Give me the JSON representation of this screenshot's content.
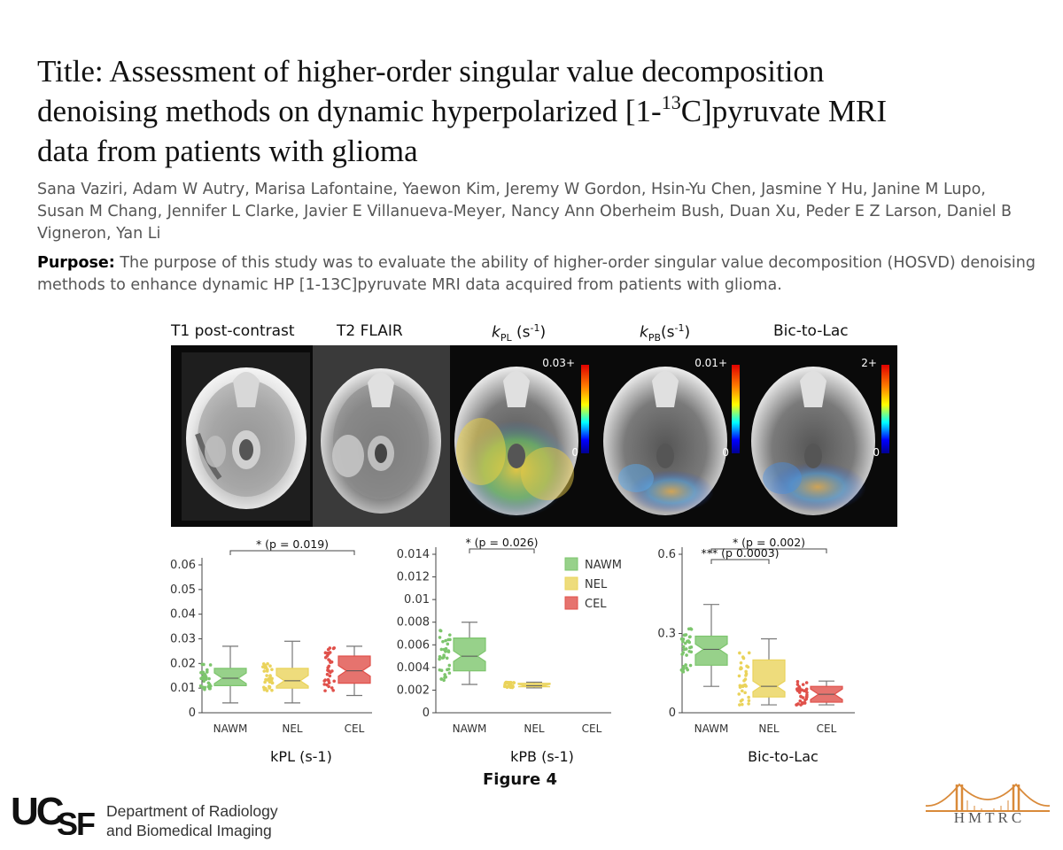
{
  "title": {
    "line1": "Title: Assessment of higher-order singular value decomposition",
    "line2_pre": "denoising methods on dynamic hyperpolarized [1-",
    "line2_sup": "13",
    "line2_post": "C]pyruvate MRI",
    "line3": "data from patients with glioma"
  },
  "authors": "Sana Vaziri, Adam W Autry, Marisa Lafontaine, Yaewon Kim, Jeremy W Gordon, Hsin-Yu Chen, Jasmine Y Hu, Janine M Lupo, Susan M Chang, Jennifer L Clarke, Javier E Villanueva-Meyer, Nancy Ann Oberheim Bush, Duan Xu, Peder E Z Larson, Daniel B Vigneron, Yan Li",
  "purpose": {
    "label": "Purpose:",
    "text": " The purpose of this study was to evaluate the ability of higher-order singular value decomposition (HOSVD) denoising methods to enhance dynamic HP [1-13C]pyruvate MRI data acquired from patients with glioma."
  },
  "figure": {
    "panel_labels": {
      "t1": "T1 post-contrast",
      "t2": "T2 FLAIR",
      "kpl_k": "k",
      "kpl_sub": "PL",
      "kpl_unit": " (s",
      "kpl_sup": "-1",
      "kpl_close": ")",
      "kpb_k": "k",
      "kpb_sub": "PB",
      "kpb_unit": "(s",
      "kpb_sup": "-1",
      "kpb_close": ")",
      "bic": "Bic-to-Lac"
    },
    "colorbars": {
      "kpl_max": "0.03+",
      "kpb_max": "0.01+",
      "bic_max": "2+",
      "min": "0"
    },
    "caption": "Figure 4"
  },
  "legend": [
    "NAWM",
    "NEL",
    "CEL"
  ],
  "colors": {
    "NAWM": "#7dc56d",
    "NEL": "#ead35b",
    "CEL": "#e0504a"
  },
  "chart_data": [
    {
      "type": "box",
      "xlabel": "kPL (s-1)",
      "categories": [
        "NAWM",
        "NEL",
        "CEL"
      ],
      "yticks": [
        "0.06",
        "0.05",
        "0.04",
        "0.03",
        "0.02",
        "0.01",
        "0"
      ],
      "ylim": [
        0,
        0.065
      ],
      "boxes": [
        {
          "name": "NAWM",
          "min": 0.004,
          "q1": 0.011,
          "median": 0.014,
          "q3": 0.018,
          "max": 0.027
        },
        {
          "name": "NEL",
          "min": 0.004,
          "q1": 0.01,
          "median": 0.013,
          "q3": 0.018,
          "max": 0.029
        },
        {
          "name": "CEL",
          "min": 0.007,
          "q1": 0.012,
          "median": 0.017,
          "q3": 0.023,
          "max": 0.027
        }
      ],
      "significance": [
        {
          "label": "* (p = 0.019)",
          "from": "NAWM",
          "to": "CEL"
        }
      ]
    },
    {
      "type": "box",
      "xlabel": "kPB (s-1)",
      "categories": [
        "NAWM",
        "NEL",
        "CEL"
      ],
      "yticks": [
        "0.014",
        "0.012",
        "0.01",
        "0.008",
        "0.006",
        "0.004",
        "0.002",
        "0"
      ],
      "ylim": [
        0,
        0.014
      ],
      "boxes": [
        {
          "name": "NAWM",
          "min": 0.0025,
          "q1": 0.0037,
          "median": 0.005,
          "q3": 0.0066,
          "max": 0.008
        },
        {
          "name": "NEL",
          "min": 0.0022,
          "q1": 0.0023,
          "median": 0.0024,
          "q3": 0.0026,
          "max": 0.0027
        }
      ],
      "significance": [
        {
          "label": "* (p = 0.026)",
          "from": "NAWM",
          "to": "NEL"
        }
      ]
    },
    {
      "type": "box",
      "xlabel": "Bic-to-Lac",
      "categories": [
        "NAWM",
        "NEL",
        "CEL"
      ],
      "yticks": [
        "0.6",
        "0.3",
        "0"
      ],
      "ylim": [
        0,
        0.6
      ],
      "boxes": [
        {
          "name": "NAWM",
          "min": 0.1,
          "q1": 0.18,
          "median": 0.24,
          "q3": 0.29,
          "max": 0.41
        },
        {
          "name": "NEL",
          "min": 0.03,
          "q1": 0.06,
          "median": 0.1,
          "q3": 0.2,
          "max": 0.28
        },
        {
          "name": "CEL",
          "min": 0.03,
          "q1": 0.04,
          "median": 0.07,
          "q3": 0.1,
          "max": 0.12
        }
      ],
      "significance": [
        {
          "label": "* (p = 0.002)",
          "from": "NAWM",
          "to": "CEL"
        },
        {
          "label": "*** (p 0.0003)",
          "from": "NAWM",
          "to": "NEL"
        }
      ]
    }
  ],
  "logos": {
    "ucsf_mark": "UCSF",
    "ucsf_line1": "Department of Radiology",
    "ucsf_line2": "and Biomedical Imaging",
    "hmtrc": "HMTRC"
  }
}
